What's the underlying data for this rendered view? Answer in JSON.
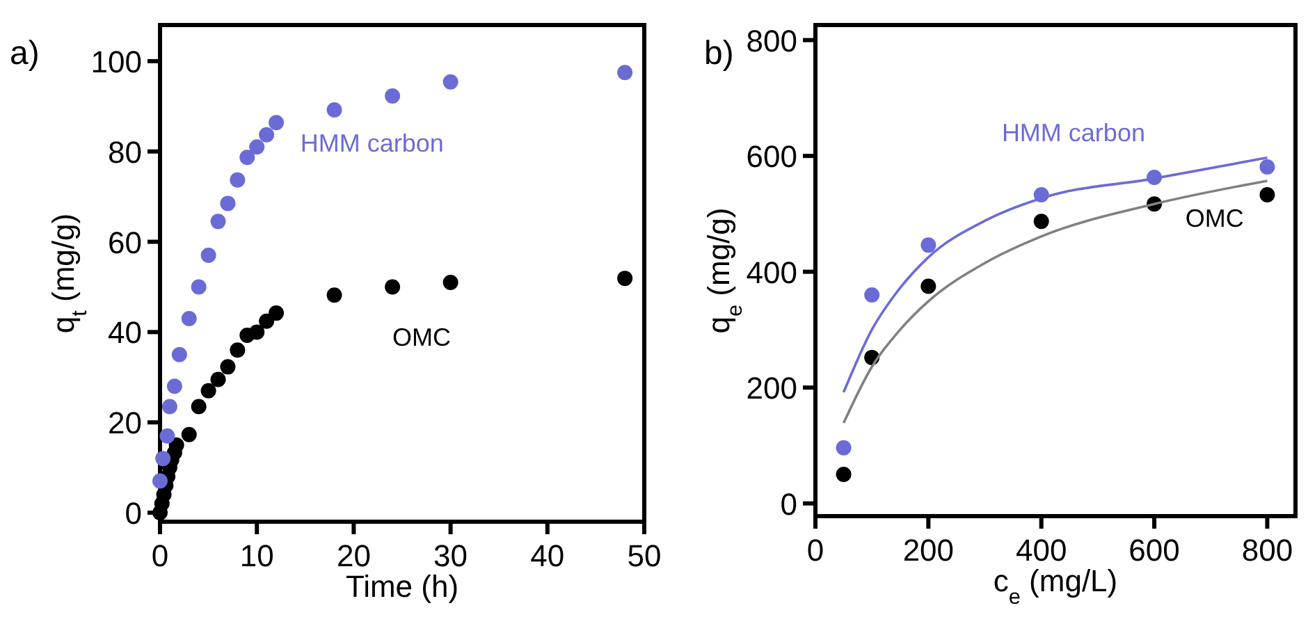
{
  "chart_data": [
    {
      "type": "scatter",
      "title": "a)",
      "xlabel": "Time (h)",
      "ylabel": "q$_{t}$ (mg/g)",
      "xlim": [
        0,
        50
      ],
      "ylim": [
        -2,
        108
      ],
      "xticks": [
        0,
        10,
        20,
        30,
        40,
        50
      ],
      "yticks": [
        0,
        20,
        40,
        60,
        80,
        100
      ],
      "grid": false,
      "marker": "circle",
      "series": [
        {
          "name": "HMM carbon",
          "color": "#6b6bd6",
          "x": [
            0,
            0.3,
            0.75,
            1,
            1.5,
            2,
            3,
            4,
            5,
            6,
            7,
            8,
            9,
            10,
            11,
            12,
            18,
            24,
            30,
            48
          ],
          "values": [
            7,
            12,
            17,
            23.5,
            28,
            35,
            43,
            50,
            57,
            64.5,
            68.5,
            73.7,
            78.7,
            81,
            83.7,
            86.4,
            89.2,
            92.3,
            95.4,
            97.5
          ]
        },
        {
          "name": "OMC",
          "color": "#000000",
          "x": [
            0,
            0.2,
            0.4,
            0.6,
            0.8,
            1,
            1.2,
            1.5,
            1.7,
            3,
            4,
            5,
            6,
            7,
            8,
            9,
            10,
            11,
            12,
            18,
            24,
            30,
            48
          ],
          "values": [
            0,
            2,
            4,
            6,
            8,
            10,
            11.7,
            13.3,
            15,
            17.3,
            23.5,
            27,
            29.5,
            32.3,
            36,
            39.3,
            40,
            42.4,
            44.2,
            48.2,
            50,
            51,
            51.9
          ]
        }
      ]
    },
    {
      "type": "scatter",
      "title": "b)",
      "xlabel": "c$_{e}$ (mg/L)",
      "ylabel": "q$_{e}$ (mg/g)",
      "xlim": [
        0,
        850
      ],
      "ylim": [
        -22,
        826
      ],
      "xticks": [
        0,
        200,
        400,
        600,
        800
      ],
      "yticks": [
        0,
        200,
        400,
        600,
        800
      ],
      "grid": false,
      "marker": "circle",
      "series": [
        {
          "type": "line",
          "color": "#6b6bd6",
          "marker": "none",
          "x": [
            50,
            100,
            150,
            200,
            300,
            400,
            600,
            800
          ],
          "values": [
            192,
            300,
            372,
            425,
            488,
            527,
            561,
            597
          ]
        },
        {
          "type": "line",
          "color": "#808080",
          "marker": "none",
          "x": [
            50,
            100,
            150,
            200,
            300,
            400,
            600,
            800
          ],
          "values": [
            139,
            236,
            300,
            349,
            415,
            461,
            517,
            557
          ]
        },
        {
          "name": "HMM carbon",
          "color": "#6b6bd6",
          "x": [
            50,
            100,
            200,
            400,
            600,
            800
          ],
          "values": [
            96,
            360,
            446,
            533,
            563,
            581
          ]
        },
        {
          "name": "OMC",
          "color": "#000000",
          "x": [
            50,
            100,
            200,
            400,
            600,
            800
          ],
          "values": [
            50,
            252,
            375,
            487,
            517,
            533
          ]
        }
      ]
    }
  ]
}
